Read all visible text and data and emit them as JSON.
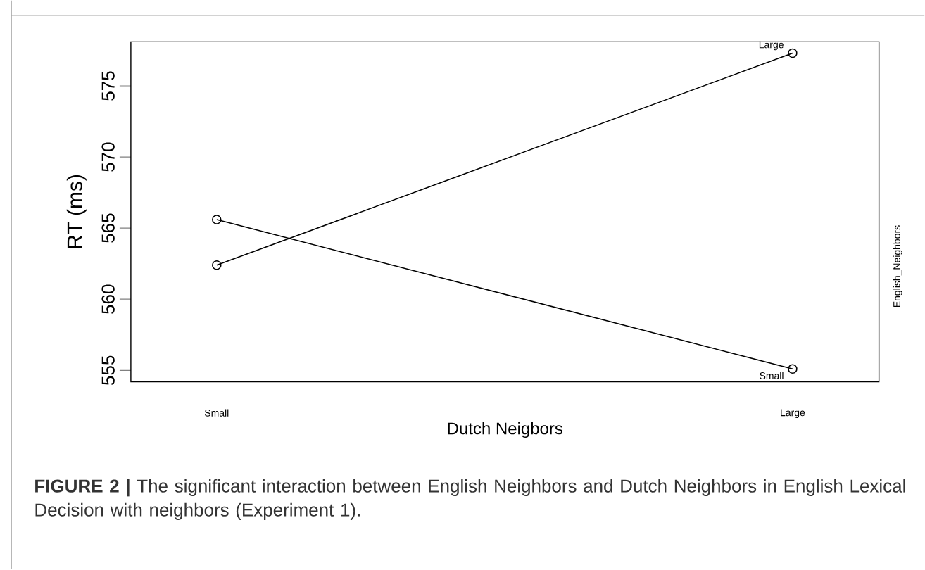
{
  "chart_data": {
    "type": "line",
    "xlabel": "Dutch Neigbors",
    "ylabel": "RT (ms)",
    "legend_title": "English_Neighbors",
    "categories": [
      "Small",
      "Large"
    ],
    "series": [
      {
        "name": "Large",
        "color": "#000000",
        "values": [
          562.4,
          577.3
        ]
      },
      {
        "name": "Small",
        "color": "#000000",
        "values": [
          565.6,
          555.1
        ]
      }
    ],
    "ylim": [
      554.2,
      578.1
    ],
    "yticks": [
      555,
      560,
      565,
      570,
      575
    ],
    "marker": "circle",
    "line_style": "solid",
    "grid": false,
    "annotations": [
      "**FIGURE 2 |** The significant interaction between English Neighbors and Dutch Neighbors in English Lexical Decision with neighbors (Experiment 1)."
    ]
  }
}
